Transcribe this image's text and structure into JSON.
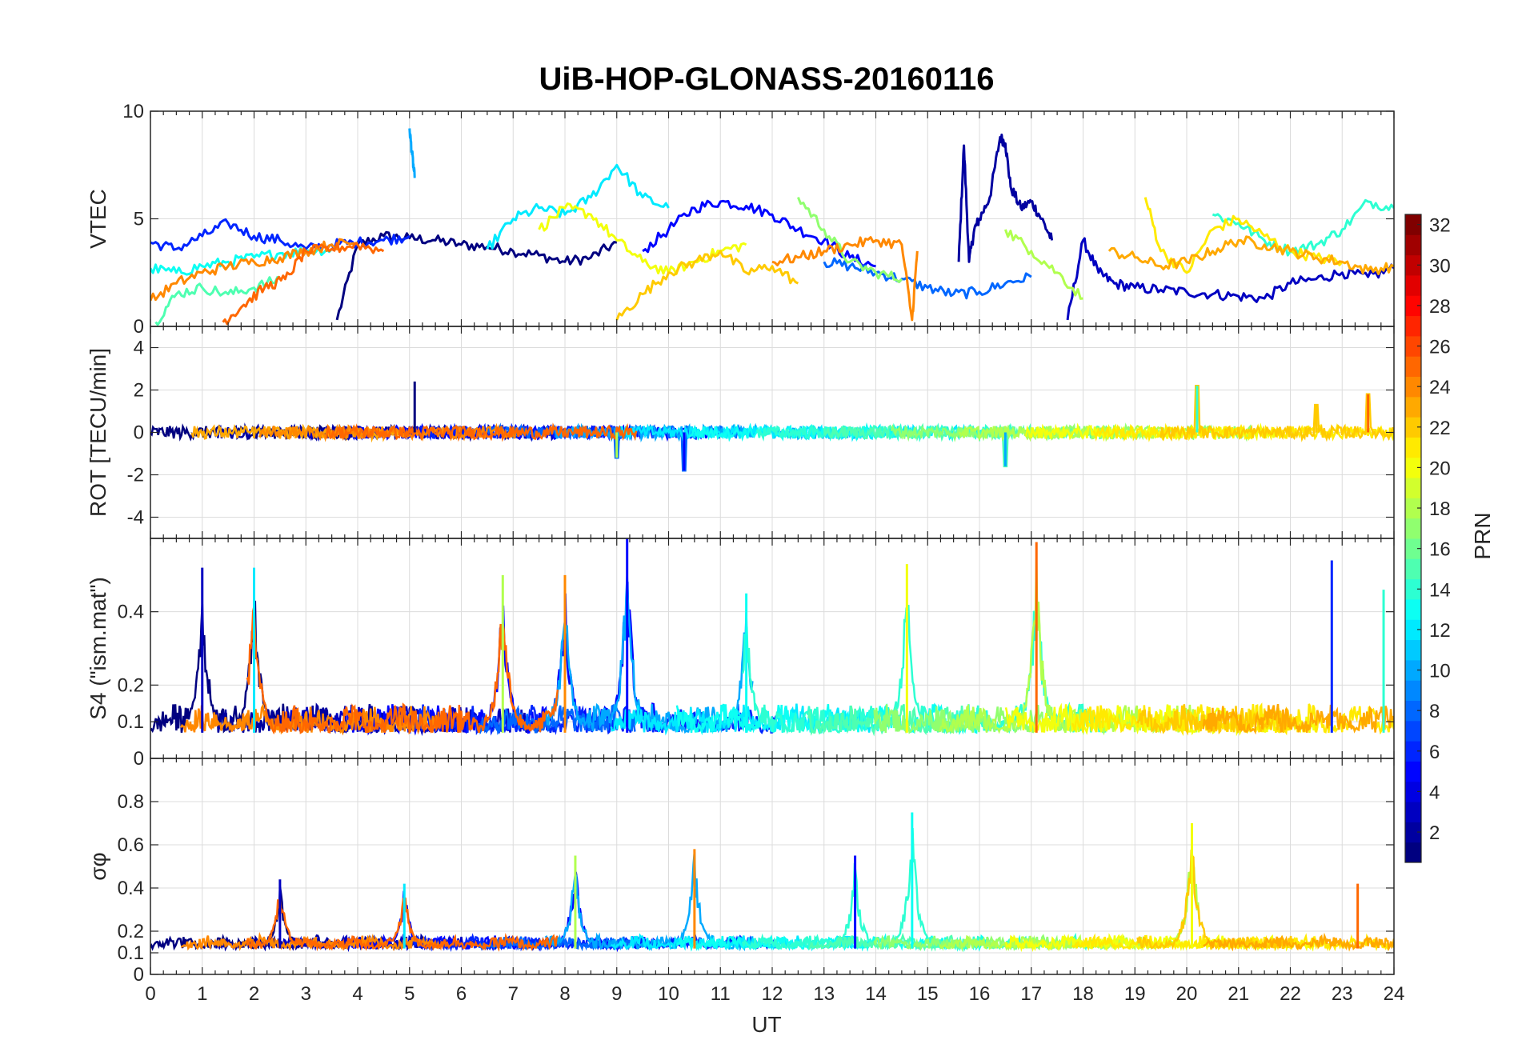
{
  "chart_data": {
    "type": "line",
    "title": "UiB-HOP-GLONASS-20160116",
    "xlabel": "UT",
    "xlim": [
      0,
      24
    ],
    "x_ticks": [
      "0",
      "1",
      "2",
      "3",
      "4",
      "5",
      "6",
      "7",
      "8",
      "9",
      "10",
      "11",
      "12",
      "13",
      "14",
      "15",
      "16",
      "17",
      "18",
      "19",
      "20",
      "21",
      "22",
      "23",
      "24"
    ],
    "colorbar": {
      "label": "PRN",
      "colormap": "jet",
      "range": [
        1,
        32
      ],
      "ticks": [
        "2",
        "4",
        "6",
        "8",
        "10",
        "12",
        "14",
        "16",
        "18",
        "20",
        "22",
        "24",
        "26",
        "28",
        "30",
        "32"
      ],
      "tick_values": [
        2,
        4,
        6,
        8,
        10,
        12,
        14,
        16,
        18,
        20,
        22,
        24,
        26,
        28,
        30,
        32
      ]
    },
    "panels": [
      {
        "id": "vtec",
        "ylabel": "VTEC",
        "ylim": [
          0,
          10
        ],
        "y_ticks": [
          "0",
          "5",
          "10"
        ],
        "y_tick_values": [
          0,
          5,
          10
        ],
        "series": [
          {
            "prn": 1,
            "x": [
              3.6,
              4.0,
              4.5,
              5.0,
              5.5,
              6.0,
              6.5,
              7.0,
              7.5,
              8.0,
              8.5,
              9.0
            ],
            "y": [
              0.3,
              3.8,
              4.2,
              4.1,
              4.0,
              3.8,
              3.7,
              3.5,
              3.3,
              3.0,
              3.2,
              3.9
            ]
          },
          {
            "prn": 2,
            "x": [
              15.6,
              15.7,
              15.8,
              15.9,
              16.0,
              16.2,
              16.4,
              16.5,
              16.6,
              16.8,
              17.0,
              17.2,
              17.4
            ],
            "y": [
              3.0,
              8.4,
              3.0,
              4.5,
              5.0,
              6.0,
              8.8,
              8.5,
              6.5,
              5.5,
              5.8,
              5.0,
              4.0
            ]
          },
          {
            "prn": 3,
            "x": [
              17.7,
              18.0,
              18.3,
              18.6,
              19.0,
              19.5,
              20.0,
              20.5,
              21.0,
              21.5,
              22.0,
              22.5,
              23.0,
              23.5,
              24.0
            ],
            "y": [
              0.3,
              4.0,
              2.5,
              2.0,
              1.8,
              1.7,
              1.6,
              1.5,
              1.4,
              1.3,
              2.0,
              2.2,
              2.5,
              2.3,
              2.7
            ]
          },
          {
            "prn": 5,
            "x": [
              9.5,
              10.0,
              10.5,
              11.0,
              11.5,
              12.0,
              12.5,
              13.0,
              13.5,
              14.0
            ],
            "y": [
              3.5,
              4.5,
              5.5,
              5.8,
              5.6,
              5.2,
              4.5,
              4.0,
              3.2,
              2.8
            ]
          },
          {
            "prn": 6,
            "x": [
              0.0,
              0.5,
              1.0,
              1.5,
              2.0,
              2.5,
              3.0,
              3.5,
              4.0,
              4.5,
              5.0
            ],
            "y": [
              3.9,
              3.6,
              4.2,
              4.8,
              4.2,
              4.0,
              3.6,
              3.8,
              3.9,
              4.0,
              4.2
            ]
          },
          {
            "prn": 8,
            "x": [
              13.0,
              13.5,
              14.0,
              14.5,
              15.0,
              15.5,
              16.0,
              16.5,
              17.0
            ],
            "y": [
              3.0,
              2.8,
              2.5,
              2.2,
              1.8,
              1.5,
              1.6,
              2.0,
              2.3
            ]
          },
          {
            "prn": 10,
            "x": [
              5.0,
              5.05,
              5.1
            ],
            "y": [
              9.2,
              8.0,
              6.9
            ]
          },
          {
            "prn": 12,
            "x": [
              6.5,
              7.0,
              7.5,
              8.0,
              8.5,
              9.0,
              9.5,
              10.0
            ],
            "y": [
              3.6,
              5.0,
              5.5,
              5.2,
              6.0,
              7.5,
              6.0,
              5.5
            ]
          },
          {
            "prn": 13,
            "x": [
              0.0,
              0.5,
              1.0,
              1.5,
              2.0,
              2.5,
              3.0,
              3.5
            ],
            "y": [
              2.7,
              2.5,
              2.8,
              3.0,
              3.2,
              3.4,
              3.5,
              3.6
            ]
          },
          {
            "prn": 14,
            "x": [
              20.5,
              21.0,
              21.5,
              22.0,
              22.5,
              23.0,
              23.5,
              24.0
            ],
            "y": [
              5.2,
              4.8,
              4.0,
              3.5,
              3.8,
              4.5,
              5.8,
              5.5
            ]
          },
          {
            "prn": 15,
            "x": [
              0.1,
              0.5,
              1.0,
              1.5,
              2.0,
              2.5
            ],
            "y": [
              0.2,
              1.5,
              1.8,
              1.5,
              1.8,
              2.2
            ]
          },
          {
            "prn": 17,
            "x": [
              12.5,
              13.0,
              13.5,
              14.0,
              14.5
            ],
            "y": [
              6.0,
              4.5,
              3.0,
              2.5,
              2.2
            ]
          },
          {
            "prn": 18,
            "x": [
              16.5,
              17.0,
              17.5,
              18.0
            ],
            "y": [
              4.5,
              3.5,
              2.5,
              1.3
            ]
          },
          {
            "prn": 20,
            "x": [
              7.5,
              8.0,
              8.5,
              9.0,
              9.5,
              10.0,
              10.5,
              11.0,
              11.5
            ],
            "y": [
              4.5,
              5.5,
              5.2,
              4.0,
              3.0,
              2.5,
              3.0,
              3.5,
              3.8
            ]
          },
          {
            "prn": 21,
            "x": [
              19.2,
              19.5,
              20.0,
              20.5,
              21.0,
              21.5,
              22.0,
              22.5,
              23.0
            ],
            "y": [
              6.0,
              3.5,
              2.5,
              4.5,
              5.0,
              4.2,
              3.5,
              3.2,
              3.0
            ]
          },
          {
            "prn": 22,
            "x": [
              9.0,
              9.5,
              10.0,
              10.5,
              11.0,
              11.5,
              12.0,
              12.5
            ],
            "y": [
              0.3,
              1.5,
              2.5,
              3.0,
              3.5,
              2.5,
              2.8,
              2.0
            ]
          },
          {
            "prn": 23,
            "x": [
              18.5,
              19.0,
              19.5,
              20.0,
              20.5,
              21.0,
              21.5,
              22.0,
              22.5,
              23.0,
              23.5,
              24.0
            ],
            "y": [
              3.5,
              3.2,
              2.8,
              3.0,
              3.5,
              4.0,
              3.8,
              3.5,
              3.2,
              3.0,
              2.6,
              2.8
            ]
          },
          {
            "prn": 24,
            "x": [
              0.0,
              0.5,
              1.0,
              1.5,
              2.0,
              2.5,
              3.0,
              3.5,
              4.0
            ],
            "y": [
              1.2,
              2.0,
              2.5,
              2.8,
              3.0,
              3.2,
              3.5,
              3.8,
              3.9
            ]
          },
          {
            "prn": 25,
            "x": [
              1.4,
              1.8,
              2.2,
              2.6,
              3.0,
              3.5,
              4.0,
              4.5
            ],
            "y": [
              0.2,
              1.0,
              1.8,
              2.2,
              3.5,
              3.6,
              3.8,
              3.5
            ]
          },
          {
            "prn": 24,
            "x": [
              12.0,
              12.5,
              13.0,
              13.5,
              14.0,
              14.5,
              14.7,
              14.8
            ],
            "y": [
              3.0,
              3.2,
              3.5,
              3.8,
              4.0,
              3.8,
              0.3,
              3.5
            ]
          }
        ]
      },
      {
        "id": "rot",
        "ylabel": "ROT [TECU/min]",
        "ylim": [
          -5,
          5
        ],
        "y_ticks": [
          "-4",
          "-2",
          "0",
          "2",
          "4"
        ],
        "y_tick_values": [
          -4,
          -2,
          0,
          2,
          4
        ],
        "noise_level": 0.3,
        "spikes": [
          [
            5.1,
            2.4
          ],
          [
            10.3,
            -1.8
          ],
          [
            16.5,
            -1.6
          ],
          [
            20.2,
            2.2
          ],
          [
            9.0,
            -1.2
          ],
          [
            22.5,
            1.3
          ],
          [
            23.5,
            1.8
          ]
        ]
      },
      {
        "id": "s4",
        "ylabel": "S4 (\"ism.mat\")",
        "ylim": [
          0,
          0.6
        ],
        "y_ticks": [
          "0",
          "0.1",
          "0.2",
          "0.4"
        ],
        "y_tick_values": [
          0,
          0.1,
          0.2,
          0.4
        ],
        "peaks": [
          [
            1.0,
            0.52
          ],
          [
            2.0,
            0.52
          ],
          [
            6.8,
            0.5
          ],
          [
            8.0,
            0.5
          ],
          [
            9.2,
            0.6
          ],
          [
            11.5,
            0.45
          ],
          [
            14.6,
            0.53
          ],
          [
            17.1,
            0.59
          ],
          [
            22.8,
            0.54
          ],
          [
            23.8,
            0.46
          ]
        ]
      },
      {
        "id": "sigphi",
        "ylabel": "σφ",
        "ylim": [
          0,
          1
        ],
        "y_ticks": [
          "0",
          "0.1",
          "0.2",
          "0.4",
          "0.6",
          "0.8"
        ],
        "y_tick_values": [
          0,
          0.1,
          0.2,
          0.4,
          0.6,
          0.8
        ],
        "peaks": [
          [
            2.5,
            0.44
          ],
          [
            4.9,
            0.42
          ],
          [
            8.2,
            0.55
          ],
          [
            10.5,
            0.58
          ],
          [
            13.6,
            0.55
          ],
          [
            14.7,
            0.75
          ],
          [
            20.1,
            0.7
          ],
          [
            23.3,
            0.42
          ]
        ]
      }
    ]
  }
}
